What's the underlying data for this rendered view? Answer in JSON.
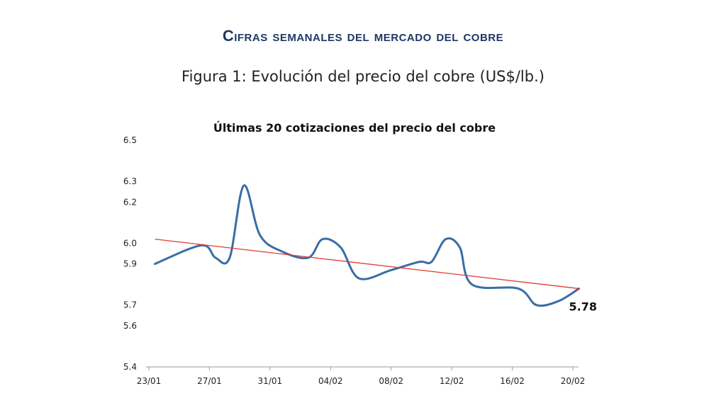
{
  "header": {
    "title": "Cifras semanales del mercado del cobre"
  },
  "figure": {
    "caption": "Figura 1: Evolución del precio del cobre (US$/lb.)"
  },
  "chart_data": {
    "type": "line",
    "title": "Últimas 20 cotizaciones del precio del cobre",
    "xlabel": "",
    "ylabel": "",
    "x_index_range": [
      0,
      21
    ],
    "ylim": [
      5.4,
      6.5
    ],
    "y_ticks": [
      "5.4",
      "5.6",
      "5.7",
      "5.9",
      "6.0",
      "6.2",
      "6.3",
      "6.5"
    ],
    "x_ticks": [
      {
        "label": "23/01",
        "index": 0
      },
      {
        "label": "27/01",
        "index": 3
      },
      {
        "label": "31/01",
        "index": 6
      },
      {
        "label": "04/02",
        "index": 9
      },
      {
        "label": "08/02",
        "index": 12
      },
      {
        "label": "12/02",
        "index": 15
      },
      {
        "label": "16/02",
        "index": 18
      },
      {
        "label": "20/02",
        "index": 21
      }
    ],
    "grid": false,
    "series": [
      {
        "color": "#3a6ea5",
        "points": [
          {
            "x": 0.3,
            "y": 5.9
          },
          {
            "x": 2.6,
            "y": 5.99
          },
          {
            "x": 3.3,
            "y": 5.93
          },
          {
            "x": 4.0,
            "y": 5.93
          },
          {
            "x": 4.7,
            "y": 6.28
          },
          {
            "x": 5.5,
            "y": 6.04
          },
          {
            "x": 6.6,
            "y": 5.96
          },
          {
            "x": 7.9,
            "y": 5.93
          },
          {
            "x": 8.6,
            "y": 6.02
          },
          {
            "x": 9.5,
            "y": 5.98
          },
          {
            "x": 10.4,
            "y": 5.83
          },
          {
            "x": 12.0,
            "y": 5.87
          },
          {
            "x": 13.4,
            "y": 5.91
          },
          {
            "x": 14.0,
            "y": 5.91
          },
          {
            "x": 14.7,
            "y": 6.02
          },
          {
            "x": 15.4,
            "y": 5.98
          },
          {
            "x": 16.0,
            "y": 5.8
          },
          {
            "x": 18.3,
            "y": 5.78
          },
          {
            "x": 19.2,
            "y": 5.7
          },
          {
            "x": 20.3,
            "y": 5.72
          },
          {
            "x": 21.3,
            "y": 5.78
          }
        ]
      },
      {
        "type": "trendline",
        "color": "#e03c31",
        "points": [
          {
            "x": 0.3,
            "y": 6.02
          },
          {
            "x": 21.3,
            "y": 5.78
          }
        ]
      }
    ],
    "annotations": [
      {
        "text": "5.78",
        "x": 21.3,
        "y": 5.78
      }
    ]
  }
}
